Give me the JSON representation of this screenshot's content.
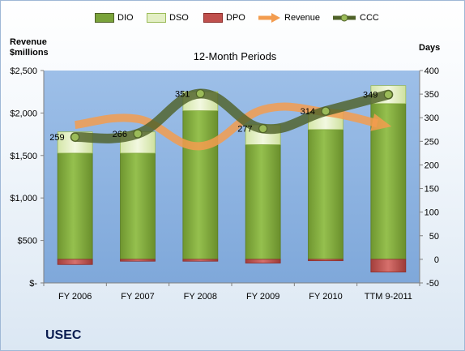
{
  "legend": {
    "dio": "DIO",
    "dso": "DSO",
    "dpo": "DPO",
    "revenue": "Revenue",
    "ccc": "CCC"
  },
  "left_axis_title": "Revenue\n$millions",
  "right_axis_title": "Days",
  "subtitle": "12-Month Periods",
  "company": "USEC",
  "colors": {
    "dio": "#7aa33a",
    "dso": "#e3efc4",
    "dpo": "#c0504d",
    "revenue": "#f39c4f",
    "ccc": "#4f6228",
    "plot_bg": "#8eb4e3"
  },
  "chart_data": {
    "type": "bar",
    "categories": [
      "FY 2006",
      "FY 2007",
      "FY 2008",
      "FY 2009",
      "FY 2010",
      "TTM 9-2011"
    ],
    "left_axis": {
      "label": "Revenue $millions",
      "ylim": [
        0,
        2500
      ],
      "ticks": [
        "$-",
        "$500",
        "$1,000",
        "$1,500",
        "$2,000",
        "$2,500"
      ]
    },
    "right_axis": {
      "label": "Days",
      "ylim": [
        -50,
        400
      ],
      "ticks": [
        "-50",
        "0",
        "50",
        "100",
        "150",
        "200",
        "250",
        "300",
        "350",
        "400"
      ]
    },
    "series": [
      {
        "name": "DIO",
        "axis": "right",
        "kind": "stacked-bar",
        "values": [
          225,
          225,
          315,
          243,
          275,
          330
        ]
      },
      {
        "name": "DSO",
        "axis": "right",
        "kind": "stacked-bar",
        "values": [
          45,
          45,
          40,
          42,
          42,
          38
        ]
      },
      {
        "name": "DPO",
        "axis": "right",
        "kind": "negative-bar",
        "values": [
          -11,
          -4,
          -4,
          -8,
          -3,
          -27
        ]
      },
      {
        "name": "Revenue",
        "axis": "left",
        "kind": "arrow-line",
        "values": [
          1860,
          1930,
          1610,
          2040,
          2010,
          1850
        ]
      },
      {
        "name": "CCC",
        "axis": "right",
        "kind": "smooth-line",
        "values": [
          259,
          266,
          351,
          277,
          314,
          349
        ],
        "data_labels": [
          "259",
          "266",
          "351",
          "277",
          "314",
          "349"
        ]
      }
    ],
    "grid": false,
    "legend_position": "top"
  }
}
